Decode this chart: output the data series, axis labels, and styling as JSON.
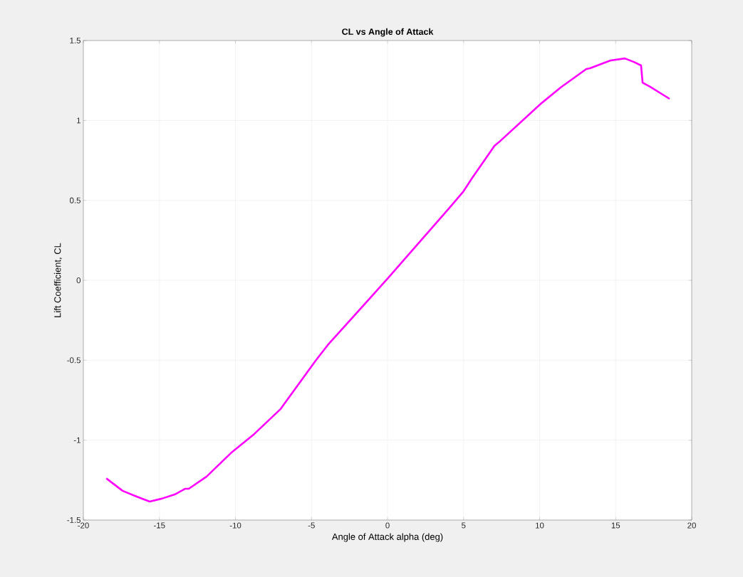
{
  "chart_data": {
    "type": "line",
    "title": "CL vs Angle of Attack",
    "xlabel": "Angle of Attack alpha (deg)",
    "ylabel": "Lift Coefficient, CL",
    "x": [
      -18.49,
      -17.42,
      -16.49,
      -15.64,
      -14.85,
      -14.0,
      -13.3,
      -13.07,
      -11.9,
      -10.3,
      -8.76,
      -7.03,
      -4.73,
      -3.93,
      0.0,
      4.03,
      4.96,
      5.57,
      7.03,
      7.31,
      10.12,
      11.38,
      13.07,
      13.3,
      14.66,
      15.6,
      16.2,
      16.67,
      16.77,
      17.28,
      18.55
    ],
    "values": [
      -1.239,
      -1.317,
      -1.353,
      -1.384,
      -1.366,
      -1.34,
      -1.304,
      -1.304,
      -1.228,
      -1.081,
      -0.961,
      -0.805,
      -0.503,
      -0.405,
      0.01,
      0.449,
      0.552,
      0.641,
      0.841,
      0.863,
      1.108,
      1.206,
      1.322,
      1.326,
      1.375,
      1.388,
      1.366,
      1.344,
      1.237,
      1.21,
      1.135
    ],
    "color": "#ff00ff",
    "xlim": [
      -20,
      20
    ],
    "ylim": [
      -1.5,
      1.5
    ],
    "xticks": [
      -20,
      -15,
      -10,
      -5,
      0,
      5,
      10,
      15,
      20
    ],
    "yticks": [
      -1.5,
      -1,
      -0.5,
      0,
      0.5,
      1,
      1.5
    ],
    "grid": true,
    "marker": "none",
    "line_style": "solid"
  }
}
